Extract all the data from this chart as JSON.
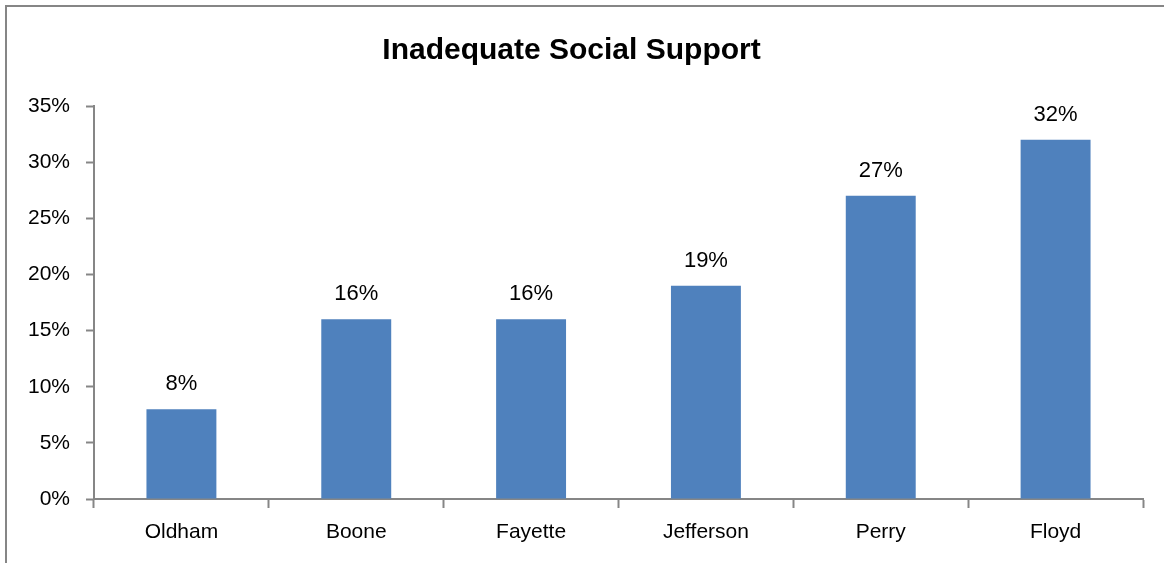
{
  "chart_data": {
    "type": "bar",
    "title": "Inadequate Social Support",
    "categories": [
      "Oldham",
      "Boone",
      "Fayette",
      "Jefferson",
      "Perry",
      "Floyd"
    ],
    "values": [
      8,
      16,
      16,
      19,
      27,
      32
    ],
    "value_labels": [
      "8%",
      "16%",
      "16%",
      "19%",
      "27%",
      "32%"
    ],
    "color": "#4f81bd",
    "ylim": [
      0,
      35
    ],
    "yticks": [
      {
        "value": 0,
        "label": "0%"
      },
      {
        "value": 5,
        "label": "5%"
      },
      {
        "value": 10,
        "label": "10%"
      },
      {
        "value": 15,
        "label": "15%"
      },
      {
        "value": 20,
        "label": "20%"
      },
      {
        "value": 25,
        "label": "25%"
      },
      {
        "value": 30,
        "label": "30%"
      },
      {
        "value": 35,
        "label": "35%"
      }
    ]
  }
}
